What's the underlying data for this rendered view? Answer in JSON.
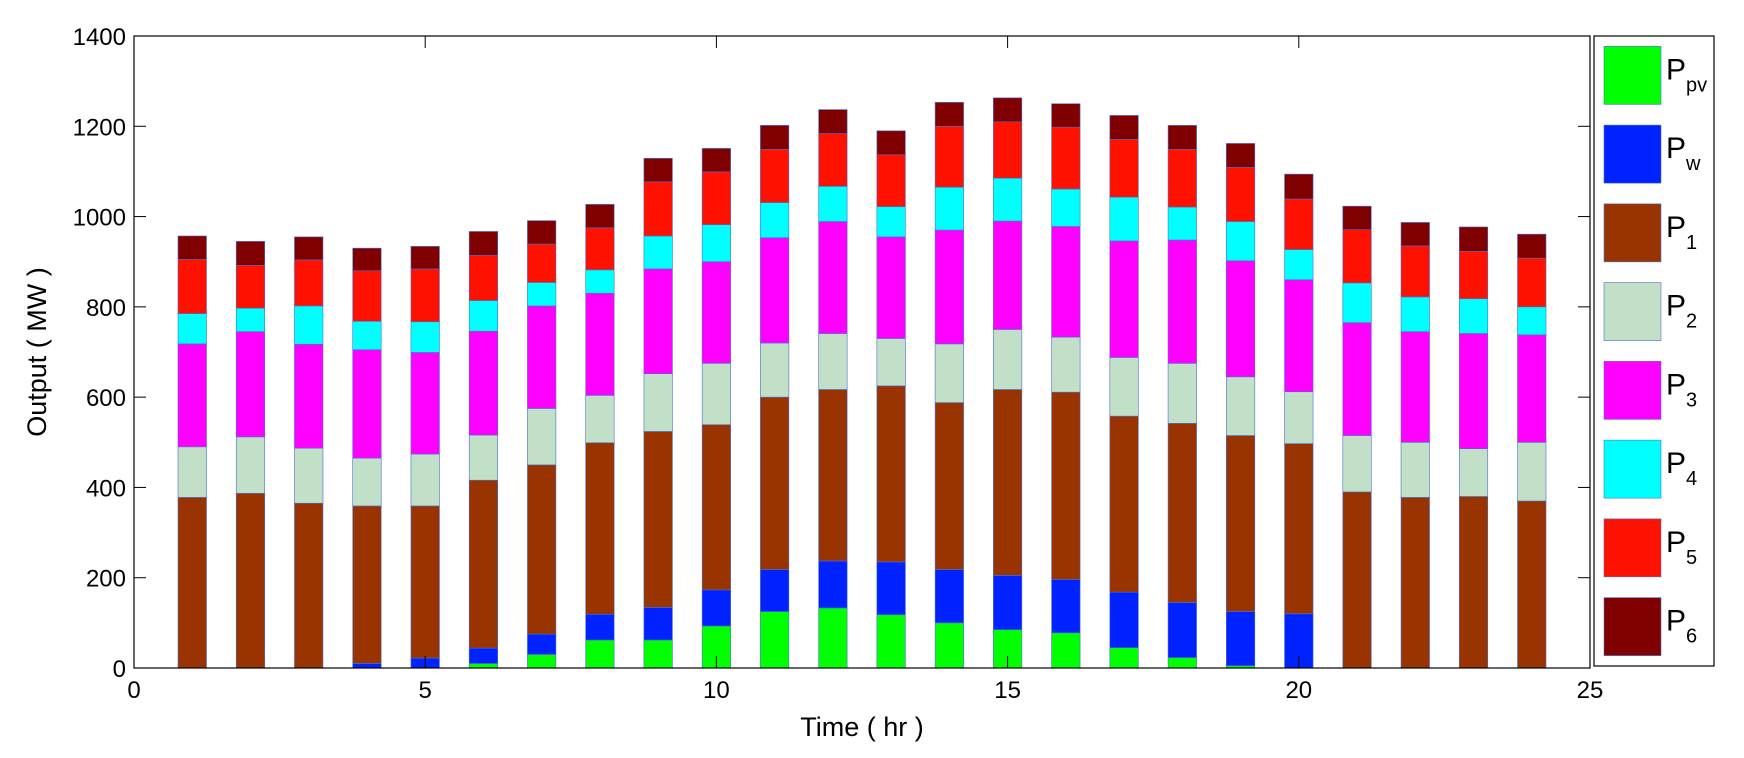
{
  "chart_data": {
    "type": "bar",
    "stacked": true,
    "title": "",
    "xlabel": "Time ( hr )",
    "ylabel": "Output ( MW )",
    "xlim": [
      0,
      25
    ],
    "ylim": [
      0,
      1400
    ],
    "xticks": [
      0,
      5,
      10,
      15,
      20,
      25
    ],
    "yticks": [
      0,
      200,
      400,
      600,
      800,
      1000,
      1200,
      1400
    ],
    "grid": false,
    "legend_position": "right",
    "x": [
      1,
      2,
      3,
      4,
      5,
      6,
      7,
      8,
      9,
      10,
      11,
      12,
      13,
      14,
      15,
      16,
      17,
      18,
      19,
      20,
      21,
      22,
      23,
      24
    ],
    "series": [
      {
        "name": "P",
        "sub": "pv",
        "color": "#00ff00",
        "values": [
          0,
          0,
          0,
          0,
          0,
          10,
          30,
          62,
          62,
          93,
          125,
          133,
          118,
          100,
          85,
          78,
          45,
          23,
          5,
          0,
          0,
          0,
          0,
          0
        ]
      },
      {
        "name": "P",
        "sub": "w",
        "color": "#0022ff",
        "values": [
          0,
          0,
          0,
          10,
          22,
          34,
          45,
          57,
          72,
          80,
          93,
          104,
          117,
          118,
          120,
          118,
          123,
          122,
          120,
          120,
          0,
          0,
          0,
          0
        ]
      },
      {
        "name": "P",
        "sub": "1",
        "color": "#993300",
        "values": [
          378,
          387,
          365,
          349,
          337,
          372,
          375,
          380,
          390,
          366,
          382,
          380,
          390,
          370,
          412,
          415,
          390,
          397,
          390,
          377,
          390,
          378,
          380,
          370
        ]
      },
      {
        "name": "P",
        "sub": "2",
        "color": "#c2dfc8",
        "values": [
          112,
          125,
          122,
          106,
          115,
          100,
          125,
          105,
          128,
          136,
          120,
          124,
          105,
          130,
          133,
          122,
          130,
          133,
          130,
          115,
          125,
          122,
          106,
          130
        ]
      },
      {
        "name": "P",
        "sub": "3",
        "color": "#ff00ff",
        "values": [
          228,
          233,
          230,
          240,
          225,
          230,
          227,
          226,
          232,
          225,
          233,
          248,
          225,
          252,
          240,
          245,
          258,
          273,
          257,
          248,
          250,
          245,
          255,
          238
        ]
      },
      {
        "name": "P",
        "sub": "4",
        "color": "#00ffff",
        "values": [
          67,
          52,
          85,
          63,
          68,
          68,
          52,
          52,
          73,
          82,
          78,
          78,
          67,
          95,
          95,
          83,
          97,
          73,
          87,
          67,
          88,
          77,
          77,
          62
        ]
      },
      {
        "name": "P",
        "sub": "5",
        "color": "#ff1100",
        "values": [
          120,
          95,
          102,
          112,
          117,
          100,
          85,
          93,
          120,
          117,
          118,
          117,
          115,
          135,
          125,
          137,
          128,
          128,
          120,
          112,
          118,
          113,
          105,
          108
        ]
      },
      {
        "name": "P",
        "sub": "6",
        "color": "#800000",
        "values": [
          52,
          53,
          51,
          50,
          50,
          53,
          52,
          52,
          52,
          52,
          53,
          53,
          53,
          53,
          53,
          52,
          53,
          53,
          53,
          55,
          52,
          52,
          54,
          53
        ]
      }
    ]
  }
}
